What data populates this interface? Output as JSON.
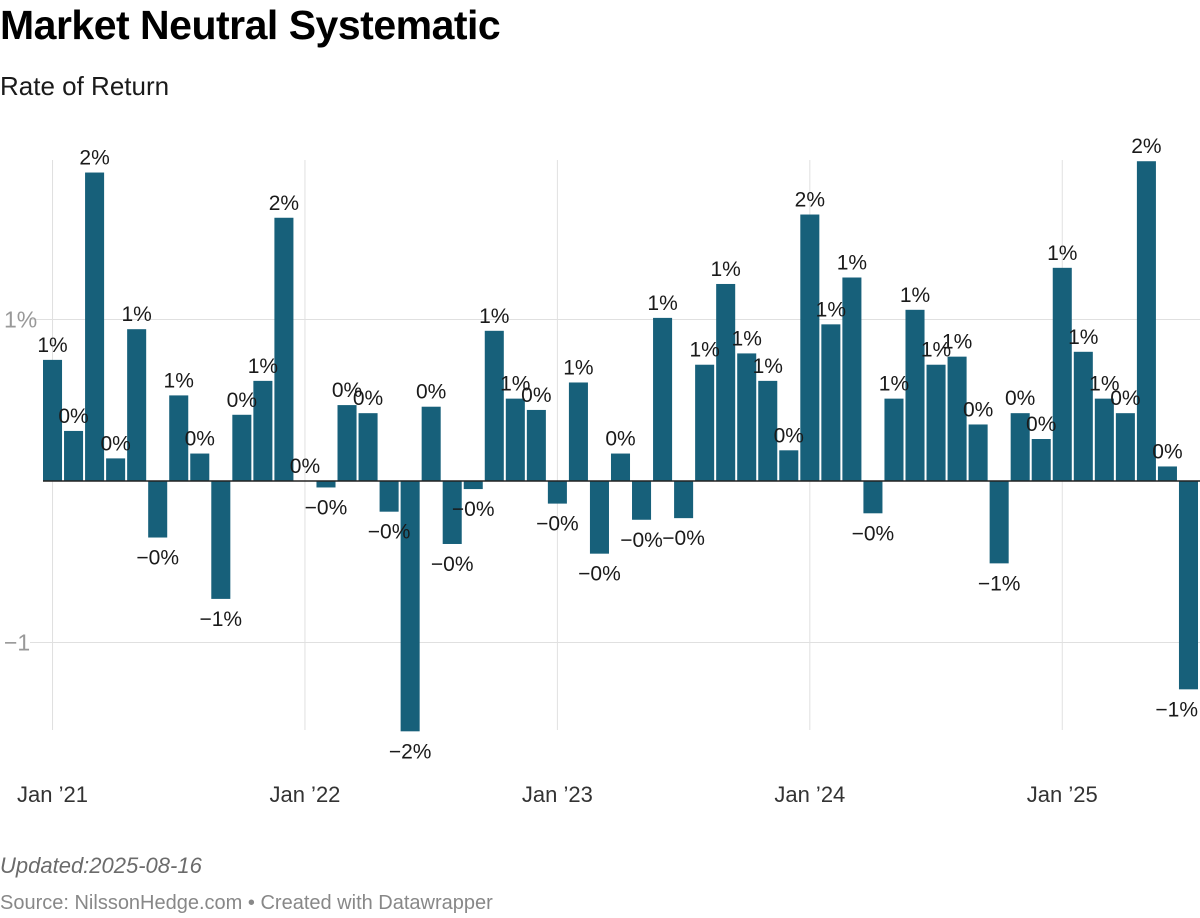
{
  "header": {
    "title": "Market Neutral Systematic",
    "subtitle": "Rate of Return"
  },
  "footer": {
    "updated": "Updated:2025-08-16",
    "source": "Source: NilssonHedge.com",
    "separator": " • ",
    "created_with": "Created with Datawrapper"
  },
  "colors": {
    "bar": "#17607a",
    "grid": "#e0e0e0",
    "zero_line": "#222222",
    "axis_text": "#999999",
    "tick_text": "#333333"
  },
  "chart_data": {
    "type": "bar",
    "title": "Market Neutral Systematic",
    "subtitle": "Rate of Return",
    "xlabel": "",
    "ylabel": "",
    "ylim": [
      -1.55,
      2.0
    ],
    "grid": true,
    "y_ticks": [
      {
        "value": 1,
        "label": "1%"
      },
      {
        "value": -1,
        "label": "−1"
      }
    ],
    "x_ticks": [
      {
        "index": 0,
        "label": "Jan ’21"
      },
      {
        "index": 12,
        "label": "Jan ’22"
      },
      {
        "index": 24,
        "label": "Jan ’23"
      },
      {
        "index": 36,
        "label": "Jan ’24"
      },
      {
        "index": 48,
        "label": "Jan ’25"
      }
    ],
    "categories": [
      "2021-01",
      "2021-02",
      "2021-03",
      "2021-04",
      "2021-05",
      "2021-06",
      "2021-07",
      "2021-08",
      "2021-09",
      "2021-10",
      "2021-11",
      "2021-12",
      "2022-01",
      "2022-02",
      "2022-03",
      "2022-04",
      "2022-05",
      "2022-06",
      "2022-07",
      "2022-08",
      "2022-09",
      "2022-10",
      "2022-11",
      "2022-12",
      "2023-01",
      "2023-02",
      "2023-03",
      "2023-04",
      "2023-05",
      "2023-06",
      "2023-07",
      "2023-08",
      "2023-09",
      "2023-10",
      "2023-11",
      "2023-12",
      "2024-01",
      "2024-02",
      "2024-03",
      "2024-04",
      "2024-05",
      "2024-06",
      "2024-07",
      "2024-08",
      "2024-09",
      "2024-10",
      "2024-11",
      "2024-12",
      "2025-01",
      "2025-02",
      "2025-03",
      "2025-04",
      "2025-05",
      "2025-06",
      "2025-07"
    ],
    "values": [
      0.75,
      0.31,
      1.91,
      0.14,
      0.94,
      -0.35,
      0.53,
      0.17,
      -0.73,
      0.41,
      0.62,
      1.63,
      0.0,
      -0.04,
      0.47,
      0.42,
      -0.19,
      -1.55,
      0.46,
      -0.39,
      -0.05,
      0.93,
      0.51,
      0.44,
      -0.14,
      0.61,
      -0.45,
      0.17,
      -0.24,
      1.01,
      -0.23,
      0.72,
      1.22,
      0.79,
      0.62,
      0.19,
      1.65,
      0.97,
      1.26,
      -0.2,
      0.51,
      1.06,
      0.72,
      0.77,
      0.35,
      -0.51,
      0.42,
      0.26,
      1.32,
      0.8,
      0.51,
      0.42,
      1.98,
      0.09,
      -1.29
    ],
    "data_labels": [
      "1%",
      "0%",
      "2%",
      "0%",
      "1%",
      "−0%",
      "1%",
      "0%",
      "−1%",
      "0%",
      "1%",
      "2%",
      "0%",
      "−0%",
      "0%",
      "0%",
      "−0%",
      "−2%",
      "0%",
      "−0%",
      "−0%",
      "1%",
      "1%",
      "0%",
      "−0%",
      "1%",
      "−0%",
      "0%",
      "−0%",
      "1%",
      "−0%",
      "1%",
      "1%",
      "1%",
      "1%",
      "0%",
      "2%",
      "1%",
      "1%",
      "−0%",
      "1%",
      "1%",
      "1%",
      "1%",
      "0%",
      "−1%",
      "0%",
      "0%",
      "1%",
      "1%",
      "1%",
      "0%",
      "2%",
      "0%",
      "−1%"
    ]
  }
}
